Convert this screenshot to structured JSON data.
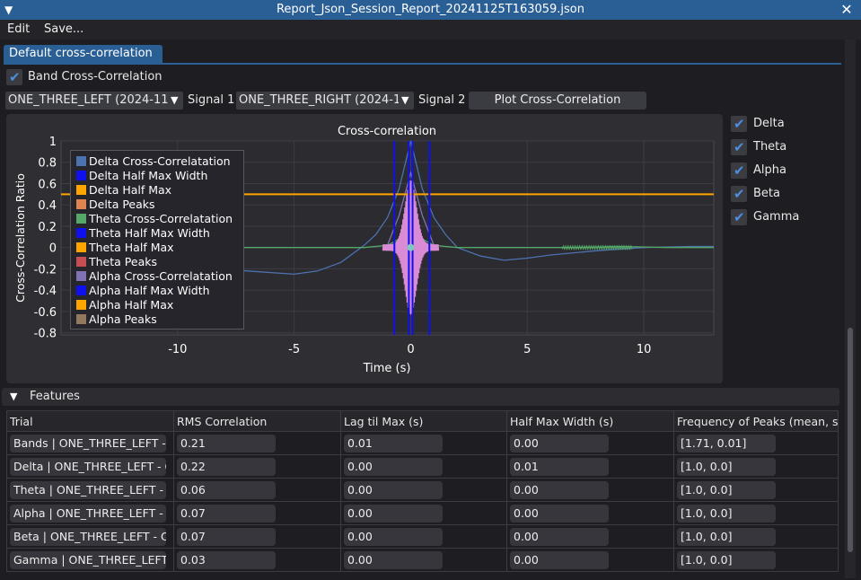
{
  "window": {
    "title": "Report_Json_Session_Report_20241125T163059.json"
  },
  "menu": {
    "edit": "Edit",
    "save": "Save..."
  },
  "tab": {
    "label": "Default cross-correlation"
  },
  "band_checkbox": {
    "label": "Band Cross-Correlation",
    "checked": true
  },
  "signal1": {
    "value": "ONE_THREE_LEFT (2024-11",
    "label": "Signal 1"
  },
  "signal2": {
    "value": "ONE_THREE_RIGHT (2024-1",
    "label": "Signal 2"
  },
  "plot_button": {
    "label": "Plot Cross-Correlation"
  },
  "band_toggles": [
    {
      "label": "Delta",
      "checked": true
    },
    {
      "label": "Theta",
      "checked": true
    },
    {
      "label": "Alpha",
      "checked": true
    },
    {
      "label": "Beta",
      "checked": true
    },
    {
      "label": "Gamma",
      "checked": true
    }
  ],
  "chart_data": {
    "type": "line",
    "title": "Cross-correlation",
    "xlabel": "Time (s)",
    "ylabel": "Cross-Correlation Ratio",
    "xlim": [
      -15,
      13
    ],
    "ylim": [
      -0.82,
      1.0
    ],
    "x_ticks": [
      -10,
      -5,
      0,
      5,
      10
    ],
    "y_ticks": [
      1,
      0.8,
      0.6,
      0.4,
      0.2,
      0,
      -0.2,
      -0.4,
      -0.6,
      -0.8
    ],
    "grid": true,
    "legend_position": "top-left",
    "legend": [
      {
        "name": "Delta Cross-Correlatation",
        "color": "#4c72b0"
      },
      {
        "name": "Delta Half Max Width",
        "color": "#1010ee"
      },
      {
        "name": "Delta Half Max",
        "color": "#ffa500"
      },
      {
        "name": "Delta Peaks",
        "color": "#dd8452"
      },
      {
        "name": "Theta Cross-Correlatation",
        "color": "#55a868"
      },
      {
        "name": "Theta Half Max Width",
        "color": "#1010ee"
      },
      {
        "name": "Theta Half Max",
        "color": "#ffa500"
      },
      {
        "name": "Theta Peaks",
        "color": "#c44e52"
      },
      {
        "name": "Alpha Cross-Correlatation",
        "color": "#8172b3"
      },
      {
        "name": "Alpha Half Max Width",
        "color": "#1010ee"
      },
      {
        "name": "Alpha Half Max",
        "color": "#ffa500"
      },
      {
        "name": "Alpha Peaks",
        "color": "#937860"
      }
    ],
    "series": [
      {
        "name": "Delta Cross-Correlatation",
        "color": "#4c72b0",
        "x": [
          -13,
          -10,
          -7,
          -5,
          -4,
          -3,
          -2,
          -1.5,
          -1,
          -0.5,
          0,
          0.5,
          1,
          1.5,
          2,
          3,
          4,
          5,
          6,
          8,
          10,
          12,
          13
        ],
        "y": [
          -0.1,
          -0.16,
          -0.22,
          -0.25,
          -0.22,
          -0.14,
          0.02,
          0.12,
          0.28,
          0.55,
          1.0,
          0.55,
          0.28,
          0.12,
          0.0,
          -0.08,
          -0.12,
          -0.1,
          -0.07,
          -0.03,
          0.0,
          0.01,
          0.01
        ]
      },
      {
        "name": "Theta Cross-Correlatation",
        "color": "#55a868",
        "x": [
          -13,
          -2,
          -1,
          -0.5,
          0,
          0.5,
          1,
          2,
          7,
          9,
          11,
          13
        ],
        "y": [
          0,
          0,
          0.02,
          0.08,
          0.3,
          0.08,
          0.02,
          0,
          0,
          0.01,
          0.0,
          0.0
        ]
      },
      {
        "name": "Alpha Cross-Correlatation",
        "color": "#8172b3",
        "x": [
          -1,
          -0.5,
          0,
          0.5,
          1
        ],
        "y": [
          0.02,
          0.3,
          0.7,
          0.3,
          0.02
        ]
      }
    ],
    "half_max_y": 0.5,
    "half_max_width_x": [
      -0.7,
      -0.08,
      0.08,
      0.8
    ]
  },
  "features": {
    "header": "Features",
    "columns": [
      "Trial",
      "RMS Correlation",
      "Lag til Max (s)",
      "Half Max Width (s)",
      "Frequency of Peaks (mean, st."
    ],
    "rows": [
      [
        "Bands | ONE_THREE_LEFT - ",
        "0.21",
        "0.01",
        "0.00",
        "[1.71, 0.01]"
      ],
      [
        "Delta | ONE_THREE_LEFT - O",
        "0.22",
        "0.00",
        "0.01",
        "[1.0, 0.0]"
      ],
      [
        "Theta | ONE_THREE_LEFT - O",
        "0.06",
        "0.00",
        "0.00",
        "[1.0, 0.0]"
      ],
      [
        "Alpha | ONE_THREE_LEFT - O",
        "0.07",
        "0.00",
        "0.00",
        "[1.0, 0.0]"
      ],
      [
        "Beta | ONE_THREE_LEFT - O",
        "0.07",
        "0.00",
        "0.00",
        "[1.0, 0.0]"
      ],
      [
        "Gamma | ONE_THREE_LEFT",
        "0.03",
        "0.00",
        "0.00",
        "[1.0, 0.0]"
      ]
    ]
  }
}
